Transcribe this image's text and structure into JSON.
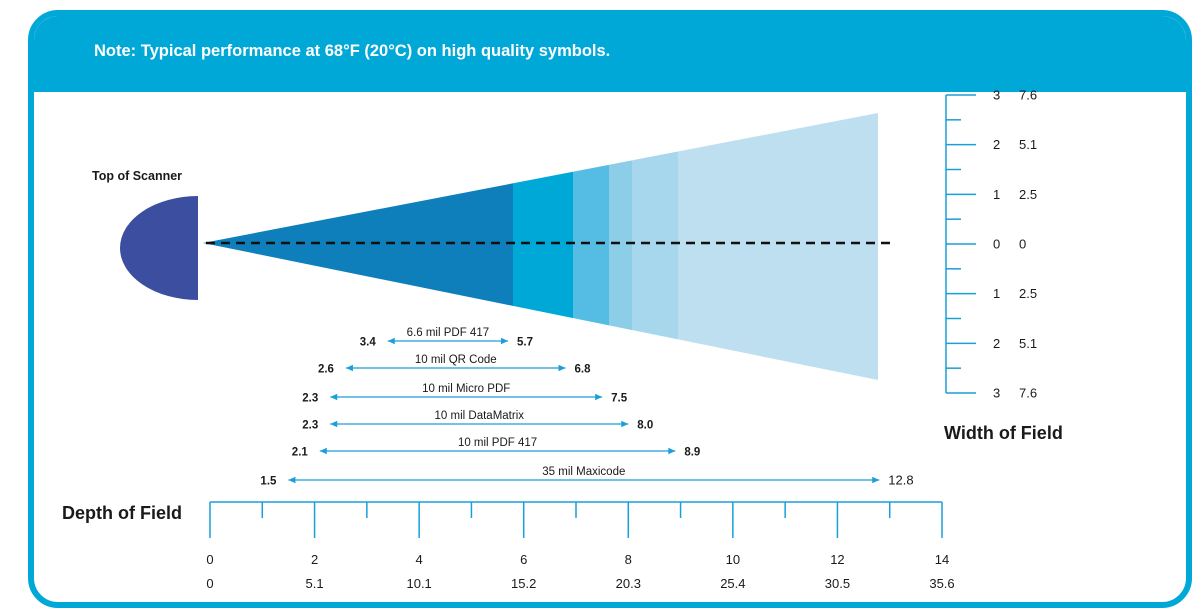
{
  "note": "Note: Typical performance at 68°F (20°C) on high quality symbols.",
  "scanner_label": "Top of Scanner",
  "width_title": "Width of Field",
  "depth_title": "Depth of Field",
  "colors": {
    "frame": "#00a8d8",
    "scanner": "#3b4ea0",
    "arrow": "#1a9fd8",
    "highlight": "#e8673c",
    "beam_zones": [
      "#0f7fbc",
      "#00a8d8",
      "#55bde3",
      "#8ccde8",
      "#a6d7ec",
      "#bddff0"
    ]
  },
  "width_scale": {
    "ticks": [
      {
        "in": "3",
        "cm": "7.6"
      },
      {
        "in": "2",
        "cm": "5.1"
      },
      {
        "in": "1",
        "cm": "2.5"
      },
      {
        "in": "0",
        "cm": "0"
      },
      {
        "in": "1",
        "cm": "2.5"
      },
      {
        "in": "2",
        "cm": "5.1"
      },
      {
        "in": "3",
        "cm": "7.6"
      }
    ]
  },
  "depth_scale": {
    "inches": [
      "0",
      "2",
      "4",
      "6",
      "8",
      "10",
      "12",
      "14"
    ],
    "cm": [
      "0",
      "5.1",
      "10.1",
      "15.2",
      "20.3",
      "25.4",
      "30.5",
      "35.6"
    ],
    "range_in": [
      0,
      14
    ]
  },
  "ranges": [
    {
      "label": "6.6 mil PDF 417",
      "near": 3.4,
      "far": 5.7,
      "near_text": "3.4",
      "far_text": "5.7",
      "highlight": false
    },
    {
      "label": "10 mil QR Code",
      "near": 2.6,
      "far": 6.8,
      "near_text": "2.6",
      "far_text": "6.8",
      "highlight": false
    },
    {
      "label": "10 mil Micro PDF",
      "near": 2.3,
      "far": 7.5,
      "near_text": "2.3",
      "far_text": "7.5",
      "highlight": false
    },
    {
      "label": "10 mil DataMatrix",
      "near": 2.3,
      "far": 8.0,
      "near_text": "2.3",
      "far_text": "8.0",
      "highlight": true
    },
    {
      "label": "10 mil PDF 417",
      "near": 2.1,
      "far": 8.9,
      "near_text": "2.1",
      "far_text": "8.9",
      "highlight": false
    },
    {
      "label": "35 mil Maxicode",
      "near": 1.5,
      "far": 12.8,
      "near_text": "1.5",
      "far_text": "12.8",
      "highlight": false
    }
  ]
}
